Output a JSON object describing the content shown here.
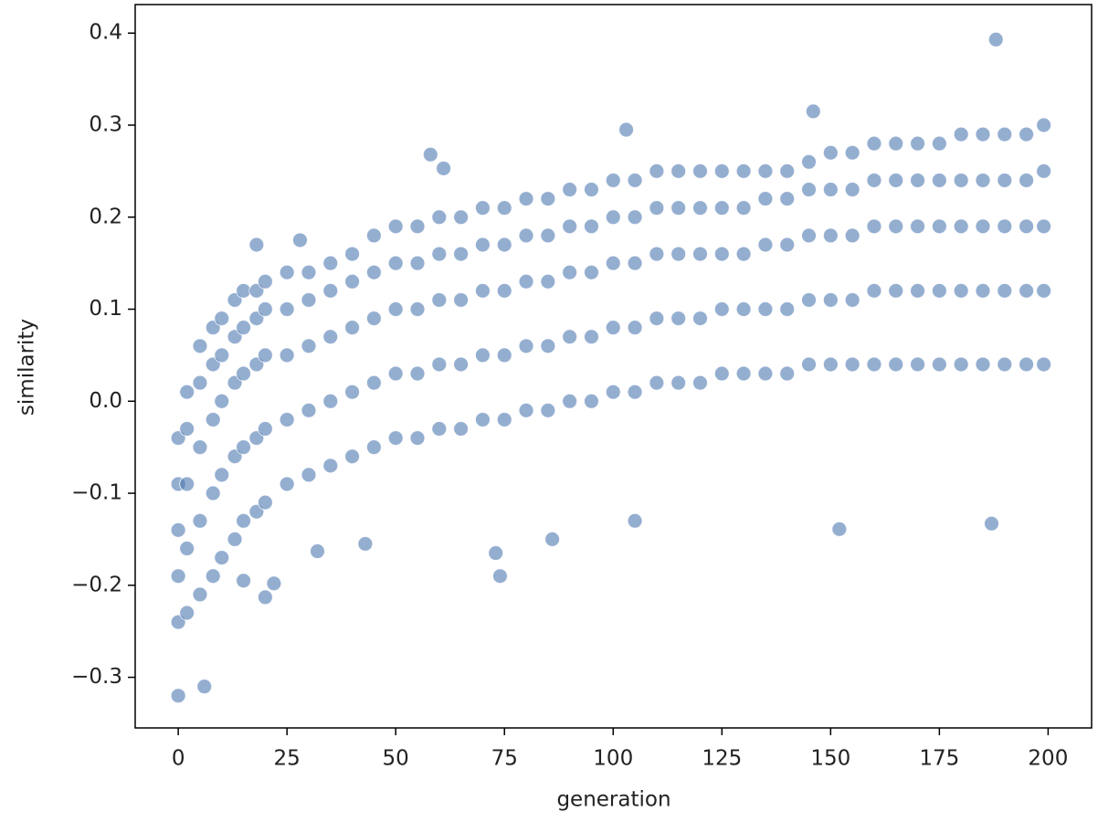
{
  "chart_data": {
    "type": "scatter",
    "x_label": "generation",
    "y_label": "similarity",
    "color": "#4c78b0",
    "xlim": [
      -9.9,
      210
    ],
    "ylim": [
      -0.355,
      0.431
    ],
    "xticks": [
      0,
      25,
      50,
      75,
      100,
      125,
      150,
      175,
      200
    ],
    "yticks": [
      {
        "value": -0.3,
        "label": "−0.3"
      },
      {
        "value": -0.2,
        "label": "−0.2"
      },
      {
        "value": -0.1,
        "label": "−0.1"
      },
      {
        "value": 0,
        "label": "0.0"
      },
      0.1,
      0.2,
      0.3,
      0.4
    ],
    "x": [
      0,
      0,
      0,
      0,
      0,
      2,
      2,
      2,
      2,
      2,
      5,
      5,
      5,
      5,
      5,
      8,
      8,
      8,
      8,
      8,
      10,
      10,
      10,
      10,
      10,
      13,
      13,
      13,
      13,
      13,
      15,
      15,
      15,
      15,
      15,
      18,
      18,
      18,
      18,
      18,
      20,
      20,
      20,
      20,
      20,
      25,
      25,
      25,
      25,
      25,
      30,
      30,
      30,
      30,
      30,
      35,
      35,
      35,
      35,
      35,
      40,
      40,
      40,
      40,
      40,
      45,
      45,
      45,
      45,
      45,
      50,
      50,
      50,
      50,
      50,
      55,
      55,
      55,
      55,
      55,
      60,
      60,
      60,
      60,
      60,
      65,
      65,
      65,
      65,
      65,
      70,
      70,
      70,
      70,
      70,
      75,
      75,
      75,
      75,
      75,
      80,
      80,
      80,
      80,
      80,
      85,
      85,
      85,
      85,
      85,
      90,
      90,
      90,
      90,
      90,
      95,
      95,
      95,
      95,
      95,
      100,
      100,
      100,
      100,
      100,
      105,
      105,
      105,
      105,
      105,
      110,
      110,
      110,
      110,
      110,
      115,
      115,
      115,
      115,
      115,
      120,
      120,
      120,
      120,
      120,
      125,
      125,
      125,
      125,
      125,
      130,
      130,
      130,
      130,
      130,
      135,
      135,
      135,
      135,
      135,
      140,
      140,
      140,
      140,
      140,
      145,
      145,
      145,
      145,
      145,
      150,
      150,
      150,
      150,
      150,
      155,
      155,
      155,
      155,
      155,
      160,
      160,
      160,
      160,
      160,
      165,
      165,
      165,
      165,
      165,
      170,
      170,
      170,
      170,
      170,
      175,
      175,
      175,
      175,
      175,
      180,
      180,
      180,
      180,
      180,
      185,
      185,
      185,
      185,
      185,
      190,
      190,
      190,
      190,
      190,
      195,
      195,
      195,
      195,
      195,
      199,
      199,
      199,
      199,
      199,
      188,
      0,
      6,
      187,
      152,
      105,
      74,
      73,
      86,
      58,
      61,
      28,
      18,
      146,
      103,
      43,
      32,
      20,
      15,
      22
    ],
    "values": [
      -0.24,
      -0.19,
      -0.14,
      -0.09,
      -0.04,
      -0.23,
      -0.16,
      -0.09,
      -0.03,
      0.01,
      -0.21,
      -0.13,
      -0.05,
      0.02,
      0.06,
      -0.19,
      -0.1,
      -0.02,
      0.04,
      0.08,
      -0.17,
      -0.08,
      0.0,
      0.05,
      0.09,
      -0.15,
      -0.06,
      0.02,
      0.07,
      0.11,
      -0.13,
      -0.05,
      0.03,
      0.08,
      0.12,
      -0.12,
      -0.04,
      0.04,
      0.09,
      0.12,
      -0.11,
      -0.03,
      0.05,
      0.1,
      0.13,
      -0.09,
      -0.02,
      0.05,
      0.1,
      0.14,
      -0.08,
      -0.01,
      0.06,
      0.11,
      0.14,
      -0.07,
      0.0,
      0.07,
      0.12,
      0.15,
      -0.06,
      0.01,
      0.08,
      0.13,
      0.16,
      -0.05,
      0.02,
      0.09,
      0.14,
      0.18,
      -0.04,
      0.03,
      0.1,
      0.15,
      0.19,
      -0.04,
      0.03,
      0.1,
      0.15,
      0.19,
      -0.03,
      0.04,
      0.11,
      0.16,
      0.2,
      -0.03,
      0.04,
      0.11,
      0.16,
      0.2,
      -0.02,
      0.05,
      0.12,
      0.17,
      0.21,
      -0.02,
      0.05,
      0.12,
      0.17,
      0.21,
      -0.01,
      0.06,
      0.13,
      0.18,
      0.22,
      -0.01,
      0.06,
      0.13,
      0.18,
      0.22,
      0.0,
      0.07,
      0.14,
      0.19,
      0.23,
      0.0,
      0.07,
      0.14,
      0.19,
      0.23,
      0.01,
      0.08,
      0.15,
      0.2,
      0.24,
      0.01,
      0.08,
      0.15,
      0.2,
      0.24,
      0.02,
      0.09,
      0.16,
      0.21,
      0.25,
      0.02,
      0.09,
      0.16,
      0.21,
      0.25,
      0.02,
      0.09,
      0.16,
      0.21,
      0.25,
      0.03,
      0.1,
      0.16,
      0.21,
      0.25,
      0.03,
      0.1,
      0.16,
      0.21,
      0.25,
      0.03,
      0.1,
      0.17,
      0.22,
      0.25,
      0.03,
      0.1,
      0.17,
      0.22,
      0.25,
      0.04,
      0.11,
      0.18,
      0.23,
      0.26,
      0.04,
      0.11,
      0.18,
      0.23,
      0.27,
      0.04,
      0.11,
      0.18,
      0.23,
      0.27,
      0.04,
      0.12,
      0.19,
      0.24,
      0.28,
      0.04,
      0.12,
      0.19,
      0.24,
      0.28,
      0.04,
      0.12,
      0.19,
      0.24,
      0.28,
      0.04,
      0.12,
      0.19,
      0.24,
      0.28,
      0.04,
      0.12,
      0.19,
      0.24,
      0.29,
      0.04,
      0.12,
      0.19,
      0.24,
      0.29,
      0.04,
      0.12,
      0.19,
      0.24,
      0.29,
      0.04,
      0.12,
      0.19,
      0.24,
      0.29,
      0.04,
      0.12,
      0.19,
      0.25,
      0.3,
      0.393,
      -0.32,
      -0.31,
      -0.133,
      -0.139,
      -0.13,
      -0.19,
      -0.165,
      -0.15,
      0.268,
      0.253,
      0.175,
      0.17,
      0.315,
      0.295,
      -0.155,
      -0.163,
      -0.213,
      -0.195,
      -0.198
    ]
  }
}
